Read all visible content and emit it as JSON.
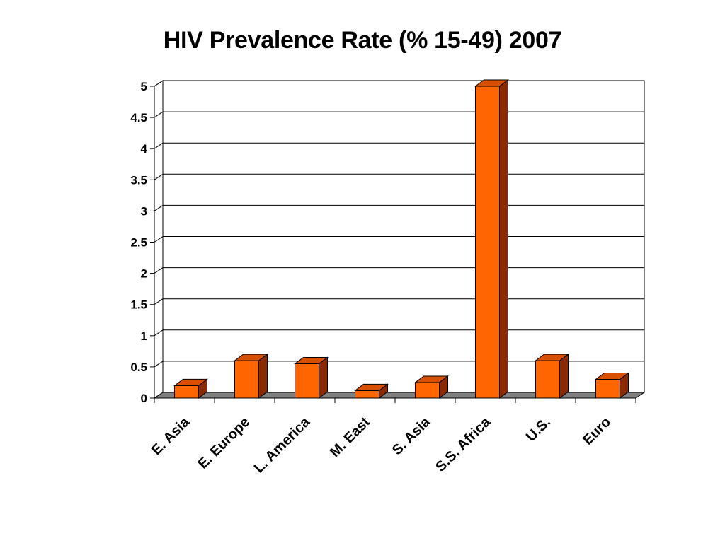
{
  "chart_data": {
    "type": "bar",
    "title": "HIV Prevalence Rate (% 15-49) 2007",
    "xlabel": "",
    "ylabel": "",
    "categories": [
      "E. Asia",
      "E. Europe",
      "L. America",
      "M. East",
      "S. Asia",
      "S.S. Africa",
      "U.S.",
      "Euro"
    ],
    "values": [
      0.2,
      0.6,
      0.55,
      0.12,
      0.25,
      5.0,
      0.6,
      0.3
    ],
    "ylim": [
      0,
      5
    ],
    "yticks": [
      "0",
      "0.5",
      "1",
      "1.5",
      "2",
      "2.5",
      "3",
      "3.5",
      "4",
      "4.5",
      "5"
    ],
    "grid": true,
    "legend": "none",
    "bar_color": "#ff6600",
    "bar_side_color": "#8a2a00",
    "bar_top_color": "#d94f00",
    "floor_color": "#808080"
  }
}
